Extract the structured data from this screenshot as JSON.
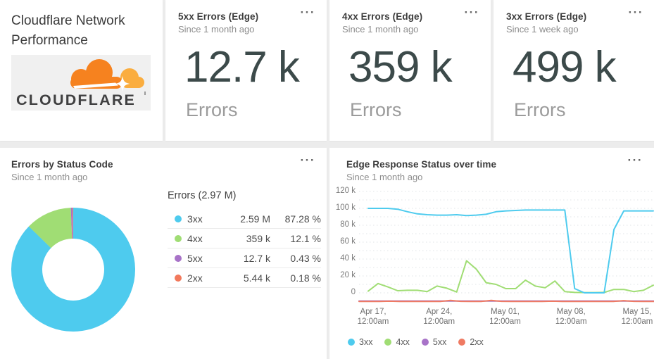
{
  "ui": {
    "menu_icon": "···"
  },
  "header_card": {
    "title": "Cloudflare Network Performance",
    "logo_text": "CLOUDFLARE"
  },
  "stat_cards": [
    {
      "title": "5xx Errors (Edge)",
      "subtitle": "Since 1 month ago",
      "value": "12.7 k",
      "unit": "Errors"
    },
    {
      "title": "4xx Errors (Edge)",
      "subtitle": "Since 1 month ago",
      "value": "359 k",
      "unit": "Errors"
    },
    {
      "title": "3xx Errors (Edge)",
      "subtitle": "Since 1 week ago",
      "value": "499 k",
      "unit": "Errors"
    }
  ],
  "chart_data": [
    {
      "type": "pie",
      "donut": true,
      "title": "Errors by Status Code",
      "subtitle": "Since 1 month ago",
      "total_label": "Errors (2.97 M)",
      "slices": [
        {
          "label": "3xx",
          "value": "2.59 M",
          "percent": 87.28,
          "percent_label": "87.28 %",
          "color": "#4ECBEE"
        },
        {
          "label": "4xx",
          "value": "359 k",
          "percent": 12.1,
          "percent_label": "12.1 %",
          "color": "#A0DD74"
        },
        {
          "label": "5xx",
          "value": "12.7 k",
          "percent": 0.43,
          "percent_label": "0.43 %",
          "color": "#A873C8"
        },
        {
          "label": "2xx",
          "value": "5.44 k",
          "percent": 0.18,
          "percent_label": "0.18 %",
          "color": "#F2795C"
        }
      ]
    },
    {
      "type": "line",
      "title": "Edge Response Status over time",
      "subtitle": "Since 1 month ago",
      "unit": "k errors per day",
      "ylim": [
        0,
        120
      ],
      "grid": "dotted horizontal lines every 10k, labels every 20k",
      "legend_position": "bottom-left",
      "y_ticks": [
        {
          "v": 120,
          "label": "120 k"
        },
        {
          "v": 100,
          "label": "100 k"
        },
        {
          "v": 80,
          "label": "80 k"
        },
        {
          "v": 60,
          "label": "60 k"
        },
        {
          "v": 40,
          "label": "40 k"
        },
        {
          "v": 20,
          "label": "20 k"
        },
        {
          "v": 0,
          "label": "0"
        }
      ],
      "x_ticks": [
        {
          "line1": "Apr 17,",
          "line2": "12:00am"
        },
        {
          "line1": "Apr 24,",
          "line2": "12:00am"
        },
        {
          "line1": "May 01,",
          "line2": "12:00am"
        },
        {
          "line1": "May 08,",
          "line2": "12:00am"
        },
        {
          "line1": "May 15,",
          "line2": "12:00am"
        }
      ],
      "x_range": "daily values, Apr 16 - May 16",
      "series": [
        {
          "name": "3xx",
          "color": "#4ECBEE",
          "values": [
            100,
            100,
            100,
            99,
            96,
            93.5,
            92.5,
            92,
            92,
            92.5,
            91.5,
            92,
            93,
            96,
            97,
            97.5,
            98,
            98,
            98,
            98,
            98,
            5,
            0,
            0,
            0,
            75,
            97,
            97,
            97,
            97
          ]
        },
        {
          "name": "4xx",
          "color": "#A0DD74",
          "values": [
            2,
            11,
            7,
            2.5,
            3,
            3,
            1.5,
            8,
            5.5,
            1,
            38,
            28,
            12,
            10,
            5,
            5,
            15,
            8,
            6,
            14,
            1.5,
            0.5,
            0.3,
            0.3,
            0.5,
            4,
            4,
            1.5,
            3,
            9
          ]
        },
        {
          "name": "5xx",
          "color": "#A873C8",
          "on_baseline": true,
          "values": [
            0.1,
            0.1,
            0.1,
            0.1,
            0.1,
            0.1,
            0.1,
            0.1,
            0.1,
            0.1,
            0.1,
            0.1,
            0.1,
            0.1,
            0.1,
            0.1,
            0.1,
            0.1,
            0.1,
            0.1,
            0.1,
            0.1,
            0.1,
            0.1,
            0.1,
            0.1,
            0.1,
            0.1,
            0.1,
            0.1
          ]
        },
        {
          "name": "2xx",
          "color": "#EF7A62",
          "on_baseline": true,
          "values": [
            0.2,
            0.2,
            0.2,
            0.5,
            0.2,
            0.2,
            0.2,
            0.2,
            0.2,
            1.5,
            0.3,
            0.2,
            0.2,
            1.5,
            0.3,
            0.2,
            0.2,
            0.2,
            0.2,
            0.5,
            0.2,
            0.2,
            0.2,
            0.2,
            0.2,
            0.2,
            1.2,
            0.3,
            0.2,
            0.2
          ]
        }
      ]
    }
  ]
}
